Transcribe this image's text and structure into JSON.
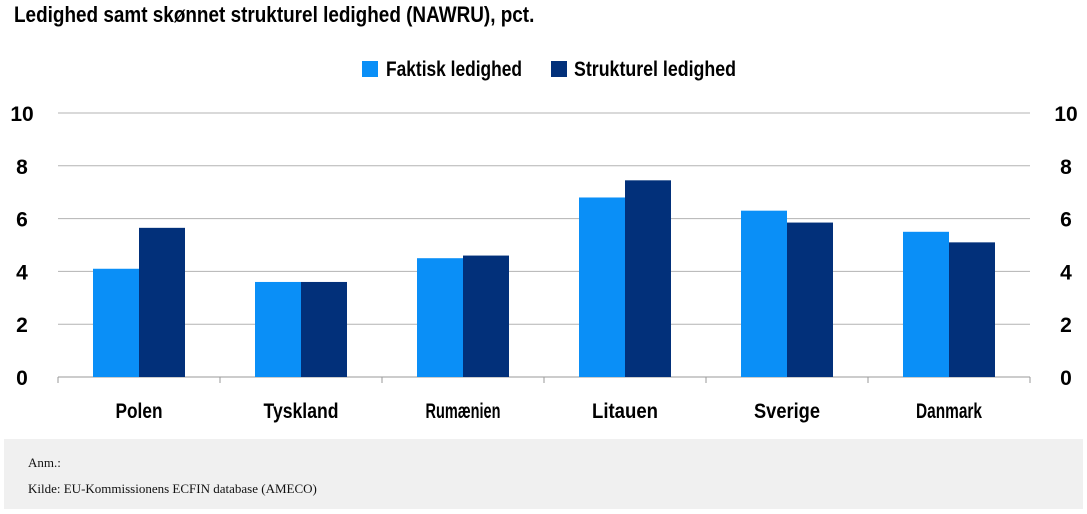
{
  "header": {
    "title": "Ledighed samt skønnet strukturel ledighed (NAWRU), pct."
  },
  "chart_data": {
    "type": "bar",
    "title": "Ledighed samt skønnet strukturel ledighed (NAWRU), pct.",
    "categories": [
      "Polen",
      "Tyskland",
      "Rumænien",
      "Litauen",
      "Sverige",
      "Danmark"
    ],
    "series": [
      {
        "name": "Faktisk ledighed",
        "color": "#0a8ff7",
        "values": [
          4.1,
          3.6,
          4.5,
          6.8,
          6.3,
          5.5
        ]
      },
      {
        "name": "Strukturel ledighed",
        "color": "#02307a",
        "values": [
          5.65,
          3.6,
          4.6,
          7.45,
          5.85,
          5.1
        ]
      }
    ],
    "yticks": [
      0,
      2,
      4,
      6,
      8,
      10
    ],
    "ylim": [
      0,
      10
    ],
    "grid": true,
    "legend": "top-center",
    "secondary_y_axis": true
  },
  "footer": {
    "note": "Anm.:",
    "source": "Kilde: EU-Kommissionens ECFIN database (AMECO)"
  }
}
